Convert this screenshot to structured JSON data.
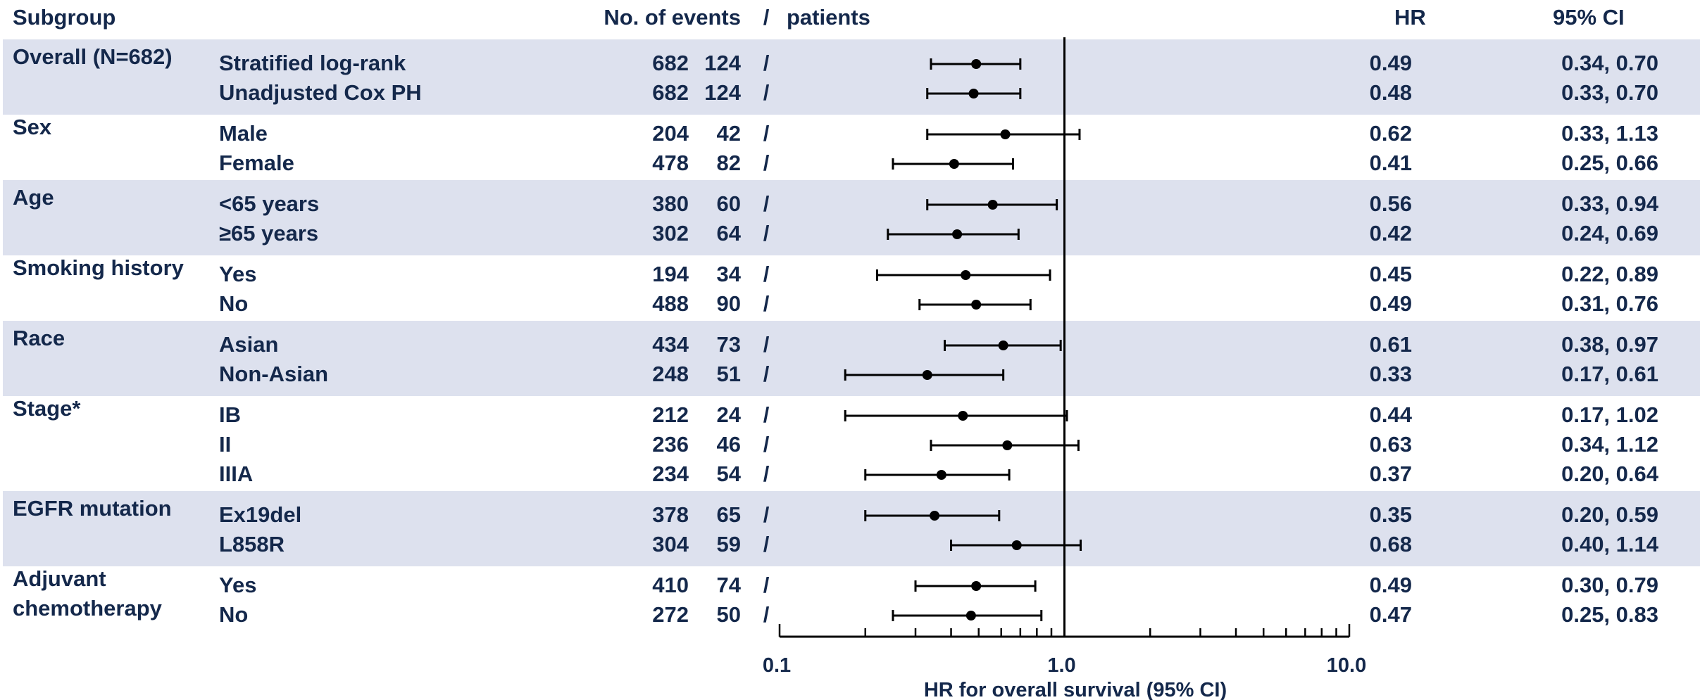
{
  "headers": {
    "subgroup": "Subgroup",
    "events": "No. of events",
    "sep": "/",
    "patients": "patients",
    "hr": "HR",
    "ci": "95% CI"
  },
  "colors": {
    "text": "#14284b",
    "band": "#dde1ee",
    "marks": "#000000"
  },
  "chart_data": {
    "type": "forest",
    "xscale": "log",
    "xlim": [
      0.1,
      10.0
    ],
    "reference_line": 1.0,
    "xticks": [
      0.1,
      1.0,
      10.0
    ],
    "xtick_labels": [
      "0.1",
      "1.0",
      "10.0"
    ],
    "xlabel": "HR for overall survival (95% CI)",
    "groups": [
      {
        "name": "Overall (N=682)",
        "shaded": true,
        "rows": [
          {
            "label": "Stratified log-rank",
            "events": "124",
            "sep": "/",
            "patients": "682",
            "hr": 0.49,
            "lo": 0.34,
            "hi": 0.7,
            "hr_text": "0.49",
            "ci_text": "0.34, 0.70"
          },
          {
            "label": "Unadjusted Cox PH",
            "events": "124",
            "sep": "/",
            "patients": "682",
            "hr": 0.48,
            "lo": 0.33,
            "hi": 0.7,
            "hr_text": "0.48",
            "ci_text": "0.33, 0.70"
          }
        ]
      },
      {
        "name": "Sex",
        "shaded": false,
        "rows": [
          {
            "label": "Male",
            "events": "42",
            "sep": "/",
            "patients": "204",
            "hr": 0.62,
            "lo": 0.33,
            "hi": 1.13,
            "hr_text": "0.62",
            "ci_text": "0.33, 1.13"
          },
          {
            "label": "Female",
            "events": "82",
            "sep": "/",
            "patients": "478",
            "hr": 0.41,
            "lo": 0.25,
            "hi": 0.66,
            "hr_text": "0.41",
            "ci_text": "0.25, 0.66"
          }
        ]
      },
      {
        "name": "Age",
        "shaded": true,
        "rows": [
          {
            "label": "<65 years",
            "events": "60",
            "sep": "/",
            "patients": "380",
            "hr": 0.56,
            "lo": 0.33,
            "hi": 0.94,
            "hr_text": "0.56",
            "ci_text": "0.33, 0.94"
          },
          {
            "label": "≥65 years",
            "events": "64",
            "sep": "/",
            "patients": "302",
            "hr": 0.42,
            "lo": 0.24,
            "hi": 0.69,
            "hr_text": "0.42",
            "ci_text": "0.24, 0.69"
          }
        ]
      },
      {
        "name": "Smoking history",
        "shaded": false,
        "rows": [
          {
            "label": "Yes",
            "events": "34",
            "sep": "/",
            "patients": "194",
            "hr": 0.45,
            "lo": 0.22,
            "hi": 0.89,
            "hr_text": "0.45",
            "ci_text": "0.22, 0.89"
          },
          {
            "label": "No",
            "events": "90",
            "sep": "/",
            "patients": "488",
            "hr": 0.49,
            "lo": 0.31,
            "hi": 0.76,
            "hr_text": "0.49",
            "ci_text": "0.31, 0.76"
          }
        ]
      },
      {
        "name": "Race",
        "shaded": true,
        "rows": [
          {
            "label": "Asian",
            "events": "73",
            "sep": "/",
            "patients": "434",
            "hr": 0.61,
            "lo": 0.38,
            "hi": 0.97,
            "hr_text": "0.61",
            "ci_text": "0.38, 0.97"
          },
          {
            "label": "Non-Asian",
            "events": "51",
            "sep": "/",
            "patients": "248",
            "hr": 0.33,
            "lo": 0.17,
            "hi": 0.61,
            "hr_text": "0.33",
            "ci_text": "0.17, 0.61"
          }
        ]
      },
      {
        "name": "Stage*",
        "shaded": false,
        "rows": [
          {
            "label": "IB",
            "events": "24",
            "sep": "/",
            "patients": "212",
            "hr": 0.44,
            "lo": 0.17,
            "hi": 1.02,
            "hr_text": "0.44",
            "ci_text": "0.17, 1.02"
          },
          {
            "label": "II",
            "events": "46",
            "sep": "/",
            "patients": "236",
            "hr": 0.63,
            "lo": 0.34,
            "hi": 1.12,
            "hr_text": "0.63",
            "ci_text": "0.34, 1.12"
          },
          {
            "label": "IIIA",
            "events": "54",
            "sep": "/",
            "patients": "234",
            "hr": 0.37,
            "lo": 0.2,
            "hi": 0.64,
            "hr_text": "0.37",
            "ci_text": "0.20, 0.64"
          }
        ]
      },
      {
        "name": "EGFR mutation",
        "shaded": true,
        "rows": [
          {
            "label": "Ex19del",
            "events": "65",
            "sep": "/",
            "patients": "378",
            "hr": 0.35,
            "lo": 0.2,
            "hi": 0.59,
            "hr_text": "0.35",
            "ci_text": "0.20, 0.59"
          },
          {
            "label": "L858R",
            "events": "59",
            "sep": "/",
            "patients": "304",
            "hr": 0.68,
            "lo": 0.4,
            "hi": 1.14,
            "hr_text": "0.68",
            "ci_text": "0.40, 1.14"
          }
        ]
      },
      {
        "name": "Adjuvant chemotherapy",
        "name_lines": [
          "Adjuvant",
          "chemotherapy"
        ],
        "shaded": false,
        "rows": [
          {
            "label": "Yes",
            "events": "74",
            "sep": "/",
            "patients": "410",
            "hr": 0.49,
            "lo": 0.3,
            "hi": 0.79,
            "hr_text": "0.49",
            "ci_text": "0.30, 0.79"
          },
          {
            "label": "No",
            "events": "50",
            "sep": "/",
            "patients": "272",
            "hr": 0.47,
            "lo": 0.25,
            "hi": 0.83,
            "hr_text": "0.47",
            "ci_text": "0.25, 0.83"
          }
        ]
      }
    ]
  }
}
